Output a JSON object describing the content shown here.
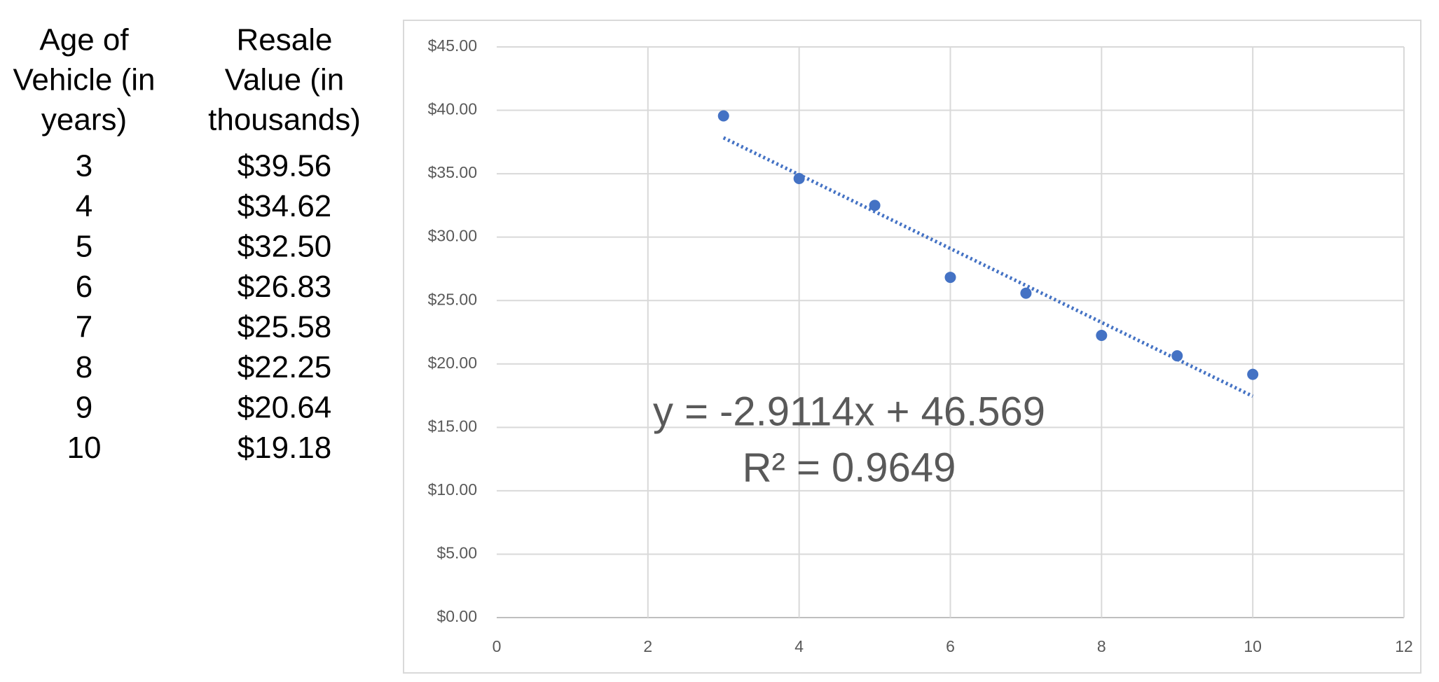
{
  "table": {
    "header": [
      [
        "Age of",
        "Vehicle (in",
        "years)"
      ],
      [
        "Resale",
        "Value (in",
        "thousands)"
      ]
    ],
    "rows": [
      [
        "3",
        "$39.56"
      ],
      [
        "4",
        "$34.62"
      ],
      [
        "5",
        "$32.50"
      ],
      [
        "6",
        "$26.83"
      ],
      [
        "7",
        "$25.58"
      ],
      [
        "8",
        "$22.25"
      ],
      [
        "9",
        "$20.64"
      ],
      [
        "10",
        "$19.18"
      ]
    ]
  },
  "chart_data": {
    "type": "scatter",
    "x": [
      3,
      4,
      5,
      6,
      7,
      8,
      9,
      10
    ],
    "values": [
      39.56,
      34.62,
      32.5,
      26.83,
      25.58,
      22.25,
      20.64,
      19.18
    ],
    "color": "#4472c4",
    "trendline": "linear",
    "annotations": [
      "y = -2.9114x + 46.569",
      "R² = 0.9649"
    ],
    "xlim": [
      0,
      12
    ],
    "xticks": [
      0,
      2,
      4,
      6,
      8,
      10,
      12
    ],
    "ylim": [
      0,
      45
    ],
    "yticks": [
      {
        "value": 0,
        "label": "$0.00"
      },
      {
        "value": 5,
        "label": "$5.00"
      },
      {
        "value": 10,
        "label": "$10.00"
      },
      {
        "value": 15,
        "label": "$15.00"
      },
      {
        "value": 20,
        "label": "$20.00"
      },
      {
        "value": 25,
        "label": "$25.00"
      },
      {
        "value": 30,
        "label": "$30.00"
      },
      {
        "value": 35,
        "label": "$35.00"
      },
      {
        "value": 40,
        "label": "$40.00"
      },
      {
        "value": 45,
        "label": "$45.00"
      }
    ],
    "grid": true
  }
}
